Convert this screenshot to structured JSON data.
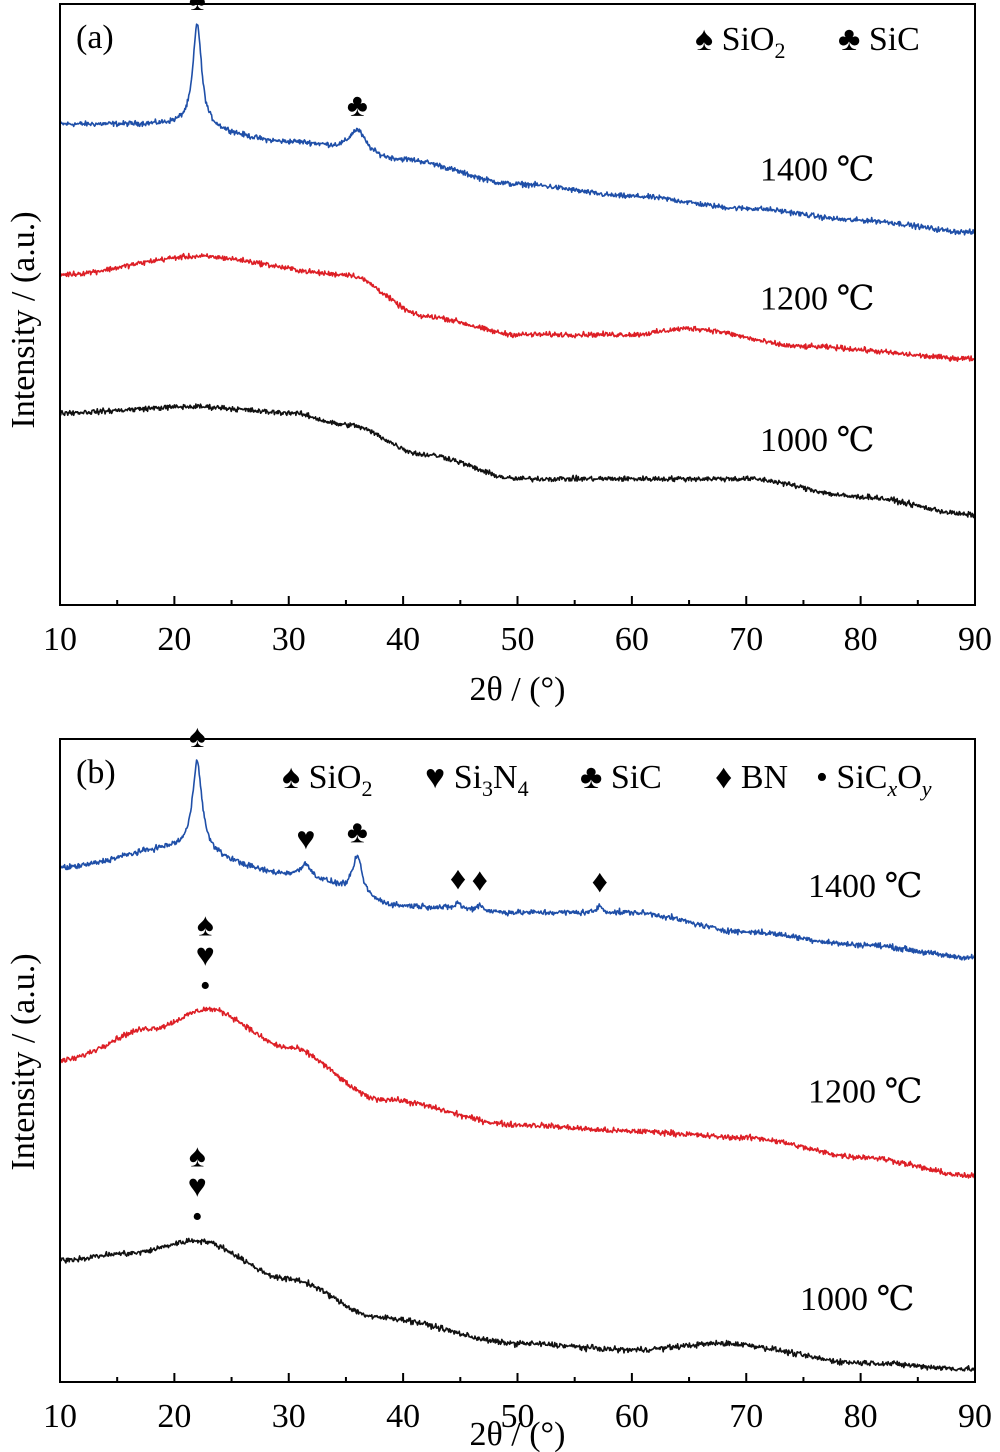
{
  "chart_data": [
    {
      "panel_label": "(a)",
      "type": "line",
      "xlabel": "2θ / (°)",
      "ylabel": "Intensity / (a.u.)",
      "xlim": [
        10,
        90
      ],
      "xticks": [
        "10",
        "20",
        "30",
        "40",
        "50",
        "60",
        "70",
        "80",
        "90"
      ],
      "grid": false,
      "legend_position": "top-right",
      "legend": [
        {
          "symbol": "♠",
          "name": "SiO",
          "sub": "2"
        },
        {
          "symbol": "♣",
          "name": "SiC",
          "sub": ""
        }
      ],
      "series": [
        {
          "name": "1400 ℃",
          "color": "#1f4fa8",
          "baseline": [
            [
              10,
              0.8
            ],
            [
              20,
              0.8
            ],
            [
              30,
              0.77
            ],
            [
              40,
              0.74
            ],
            [
              50,
              0.7
            ],
            [
              60,
              0.68
            ],
            [
              70,
              0.66
            ],
            [
              80,
              0.64
            ],
            [
              90,
              0.62
            ]
          ],
          "peaks": [
            {
              "x": 22.0,
              "h": 0.17,
              "w": 0.45,
              "marker": "♠"
            },
            {
              "x": 36.0,
              "h": 0.04,
              "w": 0.9,
              "marker": "♣"
            }
          ]
        },
        {
          "name": "1200 ℃",
          "color": "#dd1f26",
          "baseline": [
            [
              10,
              0.55
            ],
            [
              22,
              0.58
            ],
            [
              35,
              0.55
            ],
            [
              42,
              0.48
            ],
            [
              50,
              0.45
            ],
            [
              60,
              0.45
            ],
            [
              65,
              0.46
            ],
            [
              75,
              0.43
            ],
            [
              90,
              0.41
            ]
          ],
          "peaks": []
        },
        {
          "name": "1000 ℃",
          "color": "#111111",
          "baseline": [
            [
              10,
              0.32
            ],
            [
              22,
              0.33
            ],
            [
              30,
              0.32
            ],
            [
              35,
              0.3
            ],
            [
              42,
              0.25
            ],
            [
              50,
              0.21
            ],
            [
              60,
              0.21
            ],
            [
              70,
              0.21
            ],
            [
              80,
              0.18
            ],
            [
              90,
              0.15
            ]
          ],
          "peaks": []
        }
      ]
    },
    {
      "panel_label": "(b)",
      "type": "line",
      "xlabel": "2θ / (°)",
      "ylabel": "Intensity / (a.u.)",
      "xlim": [
        10,
        90
      ],
      "xticks": [
        "10",
        "20",
        "30",
        "40",
        "50",
        "60",
        "70",
        "80",
        "90"
      ],
      "grid": false,
      "legend_position": "top",
      "legend": [
        {
          "symbol": "♠",
          "name": "SiO",
          "sub": "2"
        },
        {
          "symbol": "♥",
          "name": "Si",
          "sub": "3",
          "name2": "N",
          "sub2": "4"
        },
        {
          "symbol": "♣",
          "name": "SiC",
          "sub": ""
        },
        {
          "symbol": "♦",
          "name": "BN",
          "sub": ""
        },
        {
          "symbol": "•",
          "name": "SiC",
          "sub": "x",
          "name2": "O",
          "sub2": "y"
        }
      ],
      "series": [
        {
          "name": "1400 ℃",
          "color": "#1f4fa8",
          "baseline": [
            [
              10,
              0.8
            ],
            [
              20,
              0.83
            ],
            [
              30,
              0.79
            ],
            [
              40,
              0.74
            ],
            [
              50,
              0.73
            ],
            [
              60,
              0.73
            ],
            [
              70,
              0.7
            ],
            [
              80,
              0.68
            ],
            [
              90,
              0.66
            ]
          ],
          "peaks": [
            {
              "x": 22.0,
              "h": 0.14,
              "w": 0.5,
              "marker": "♠"
            },
            {
              "x": 31.5,
              "h": 0.02,
              "w": 0.4,
              "marker": "♥"
            },
            {
              "x": 36.0,
              "h": 0.06,
              "w": 0.5,
              "marker": "♣"
            },
            {
              "x": 44.8,
              "h": 0.01,
              "w": 0.3,
              "marker": "♦"
            },
            {
              "x": 46.7,
              "h": 0.01,
              "w": 0.3,
              "marker": "♦"
            },
            {
              "x": 57.2,
              "h": 0.01,
              "w": 0.3,
              "marker": "♦"
            }
          ]
        },
        {
          "name": "1200 ℃",
          "color": "#dd1f26",
          "baseline": [
            [
              10,
              0.5
            ],
            [
              18,
              0.55
            ],
            [
              23,
              0.58
            ],
            [
              30,
              0.52
            ],
            [
              38,
              0.44
            ],
            [
              50,
              0.4
            ],
            [
              60,
              0.39
            ],
            [
              70,
              0.38
            ],
            [
              80,
              0.35
            ],
            [
              90,
              0.32
            ]
          ],
          "peaks": [],
          "markers": [
            {
              "x": 22.7,
              "symbols": [
                "♠",
                "♥",
                "•"
              ]
            }
          ]
        },
        {
          "name": "1000 ℃",
          "color": "#111111",
          "baseline": [
            [
              10,
              0.19
            ],
            [
              16,
              0.2
            ],
            [
              22,
              0.22
            ],
            [
              30,
              0.16
            ],
            [
              38,
              0.1
            ],
            [
              50,
              0.06
            ],
            [
              60,
              0.05
            ],
            [
              68,
              0.06
            ],
            [
              80,
              0.03
            ],
            [
              90,
              0.02
            ]
          ],
          "peaks": [],
          "markers": [
            {
              "x": 22.0,
              "symbols": [
                "♠",
                "♥",
                "•"
              ]
            }
          ]
        }
      ]
    }
  ]
}
